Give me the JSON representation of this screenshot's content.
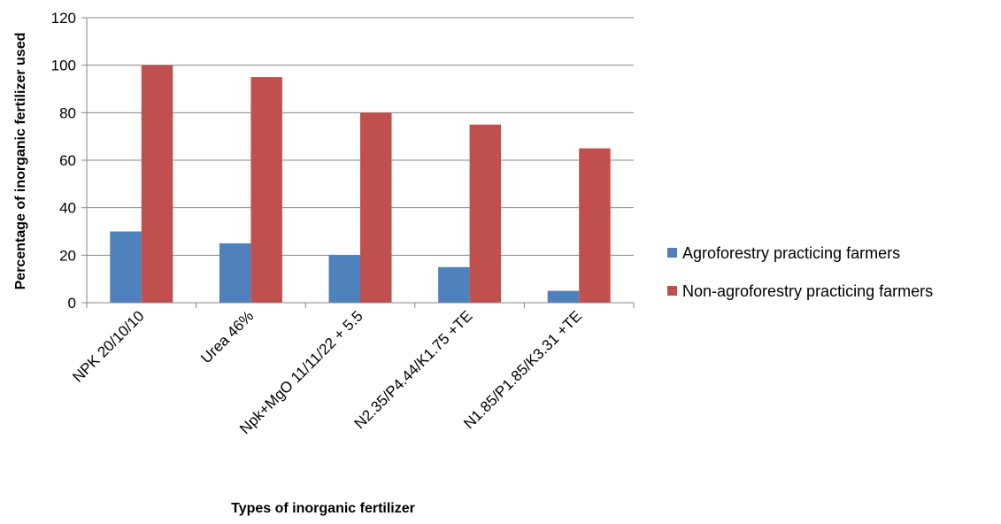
{
  "chart_data": {
    "type": "bar",
    "title": "",
    "xlabel": "Types of inorganic fertilizer",
    "ylabel": "Percentage of inorganic fertilizer used",
    "ylim": [
      0,
      120
    ],
    "yticks": [
      0,
      20,
      40,
      60,
      80,
      100,
      120
    ],
    "grid": true,
    "legend_position": "right",
    "categories": [
      "NPK 20/10/10",
      "Urea 46%",
      "Npk+MgO 11/11/22 + 5.5",
      "N2.35/P4.44/K1.75 +TE",
      "N1.85/P1.85/K3.31 +TE"
    ],
    "series": [
      {
        "name": "Agroforestry practicing farmers",
        "color": "#4F81BD",
        "values": [
          30,
          25,
          20,
          15,
          5
        ]
      },
      {
        "name": "Non-agroforestry practicing farmers",
        "color": "#C0504D",
        "values": [
          100,
          95,
          80,
          75,
          65
        ]
      }
    ]
  }
}
